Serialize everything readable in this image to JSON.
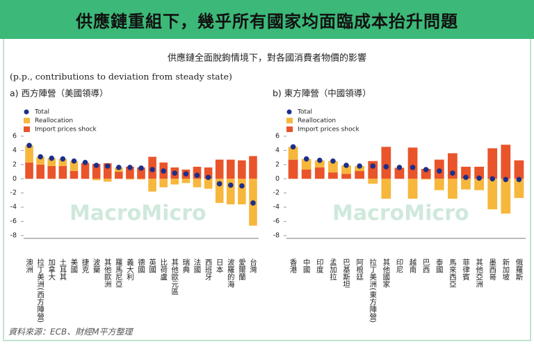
{
  "header": {
    "title": "供應鏈重組下，幾乎所有國家均面臨成本抬升問題",
    "subtitle": "供應鏈全面脫鉤情境下，對各國消費者物價的影響",
    "unit_note": "(p.p., contributions to deviation from steady state)"
  },
  "watermark": "MacroMicro",
  "source": "資料來源：ECB、財經M平方整理",
  "chart_data": [
    {
      "type": "stacked-bar",
      "title": "a) 西方陣營（美國領導）",
      "categories": [
        "澳洲",
        "拉丁美洲(西方陣營)",
        "加拿大",
        "土耳其",
        "美國",
        "捷克",
        "波蘭",
        "其他歐洲",
        "羅馬尼亞",
        "義大利",
        "德國",
        "英國",
        "比荷盧",
        "其他歐元區",
        "瑞典",
        "法國",
        "西班牙",
        "日本",
        "波羅的海",
        "愛爾蘭",
        "台灣"
      ],
      "series": [
        {
          "name": "Total",
          "color": "#1b2f8a",
          "mark": "dot",
          "values": [
            4.7,
            3.1,
            2.9,
            2.8,
            2.5,
            2.3,
            1.9,
            1.8,
            1.6,
            1.6,
            1.5,
            1.3,
            1.1,
            0.8,
            0.7,
            0.5,
            0.2,
            -0.7,
            -0.9,
            -1.0,
            -3.4
          ]
        },
        {
          "name": "Reallocation",
          "color": "#f6b73c",
          "mark": "bar",
          "values": [
            2.4,
            1.1,
            1.1,
            1.0,
            1.4,
            0.1,
            -0.2,
            -0.4,
            0.6,
            -0.1,
            -0.1,
            -1.8,
            -1.2,
            -0.8,
            -0.6,
            -1.2,
            -1.4,
            -3.4,
            -3.6,
            -3.6,
            -6.6
          ]
        },
        {
          "name": "Import prices shock",
          "color": "#e9542a",
          "mark": "bar",
          "values": [
            2.3,
            2.0,
            1.8,
            1.8,
            1.1,
            2.2,
            2.1,
            2.2,
            1.0,
            1.7,
            1.6,
            3.1,
            2.3,
            1.6,
            1.3,
            1.7,
            1.6,
            2.7,
            2.7,
            2.6,
            3.2
          ]
        }
      ],
      "ylim": [
        -8,
        6
      ],
      "yticks": [
        -8,
        -6,
        -4,
        -2,
        0,
        2,
        4,
        6
      ]
    },
    {
      "type": "stacked-bar",
      "title": "b) 東方陣營（中國領導）",
      "categories": [
        "香港",
        "中國",
        "印度",
        "孟加拉",
        "巴基斯坦",
        "阿根廷",
        "拉丁美洲(東方陣營)",
        "其他國家",
        "印尼",
        "越南",
        "巴西",
        "泰國",
        "馬來西亞",
        "菲律賓",
        "其他亞洲",
        "墨西哥",
        "新加坡",
        "俄羅斯"
      ],
      "series": [
        {
          "name": "Total",
          "color": "#1b2f8a",
          "mark": "dot",
          "values": [
            4.5,
            2.8,
            2.6,
            2.5,
            1.9,
            1.8,
            1.8,
            1.7,
            1.6,
            1.6,
            1.3,
            1.1,
            0.8,
            0.2,
            0.1,
            0.0,
            -0.1,
            -0.1
          ]
        },
        {
          "name": "Reallocation",
          "color": "#f6b73c",
          "mark": "bar",
          "values": [
            1.8,
            1.5,
            1.0,
            1.6,
            1.2,
            0.7,
            -0.7,
            -2.8,
            0.1,
            -2.8,
            -0.1,
            -1.6,
            -2.8,
            -1.5,
            -1.6,
            -4.3,
            -4.9,
            -2.7
          ]
        },
        {
          "name": "Import prices shock",
          "color": "#e9542a",
          "mark": "bar",
          "values": [
            2.7,
            1.3,
            1.6,
            0.9,
            0.7,
            1.1,
            2.5,
            4.5,
            1.5,
            4.4,
            1.4,
            2.7,
            3.6,
            1.7,
            1.7,
            4.3,
            4.8,
            2.6
          ]
        }
      ],
      "ylim": [
        -8,
        6
      ],
      "yticks": [
        -8,
        -6,
        -4,
        -2,
        0,
        2,
        4,
        6
      ]
    }
  ]
}
